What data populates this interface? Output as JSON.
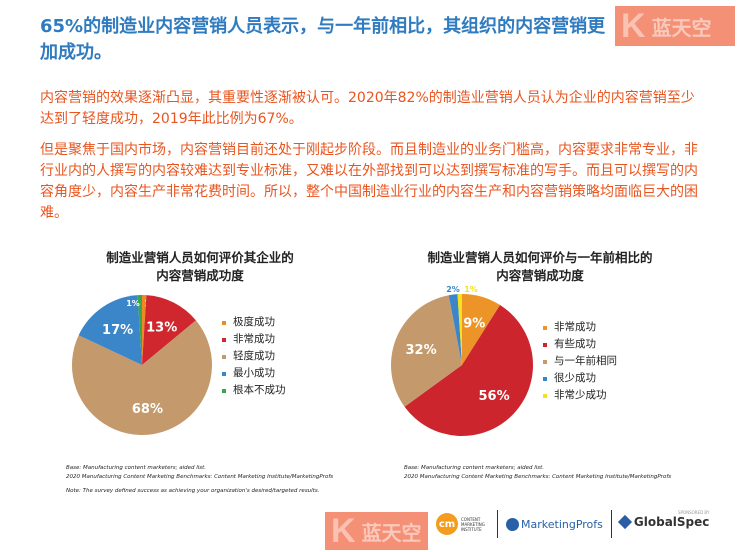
{
  "title": "65%的制造业内容营销人员表示，与一年前相比，其组织的内容营销更加成功。",
  "watermark": {
    "k": "K",
    "text": "蓝天空"
  },
  "paragraphs": [
    "内容营销的效果逐渐凸显，其重要性逐渐被认可。2020年82%的制造业营销人员认为企业的内容营销至少达到了轻度成功，2019年此比例为67%。",
    "但是聚焦于国内市场，内容营销目前还处于刚起步阶段。而且制造业的业务门槛高，内容要求非常专业，非行业内的人撰写的内容较难达到专业标准，又难以在外部找到可以达到撰写标准的写手。而且可以撰写的内容角度少，内容生产非常花费时间。所以，整个中国制造业行业的内容生产和内容营销策略均面临巨大的困难。"
  ],
  "chart_data": [
    {
      "type": "pie",
      "title": "制造业营销人员如何评价其企业的内容营销成功度",
      "title_lines": [
        "制造业营销人员如何评价其企业的",
        "内容营销成功度"
      ],
      "categories": [
        "极度成功",
        "非常成功",
        "轻度成功",
        "最小成功",
        "根本不成功"
      ],
      "values": [
        1,
        13,
        68,
        17,
        1
      ],
      "labels": [
        "1%",
        "13%",
        "68%",
        "17%",
        "1%"
      ],
      "colors": [
        "#ed8a26",
        "#d0262e",
        "#c49a6c",
        "#3a86c8",
        "#3aa64a"
      ],
      "legend": "right"
    },
    {
      "type": "pie",
      "title": "制造业营销人员如何评价与一年前相比的内容营销成功度",
      "title_lines": [
        "制造业营销人员如何评价与一年前相比的",
        "内容营销成功度"
      ],
      "categories": [
        "非常成功",
        "有些成功",
        "与一年前相同",
        "很少成功",
        "非常少成功"
      ],
      "values": [
        9,
        56,
        32,
        2,
        1
      ],
      "labels": [
        "9%",
        "56%",
        "32%",
        "2%",
        "1%"
      ],
      "colors": [
        "#ec9427",
        "#cc252e",
        "#c49a6c",
        "#3a86c8",
        "#f5e21b"
      ],
      "legend": "right"
    }
  ],
  "footnotes": {
    "left": [
      "Base: Manufacturing content marketers; aided list.",
      "2020 Manufacturing Content Marketing Benchmarks: Content Marketing Institute/MarketingProfs",
      "Note: The survey defined success as achieving your organization's desired/targeted results."
    ],
    "right": [
      "Base: Manufacturing content marketers; aided list.",
      "2020 Manufacturing Content Marketing Benchmarks: Content Marketing Institute/MarketingProfs"
    ]
  },
  "brands": {
    "cmi_mark": "cm",
    "cmi": "CONTENT MARKETING INSTITUTE",
    "mprofs": "MarketingProfs",
    "sponsored": "SPONSORED BY",
    "globalspec": "GlobalSpec"
  }
}
